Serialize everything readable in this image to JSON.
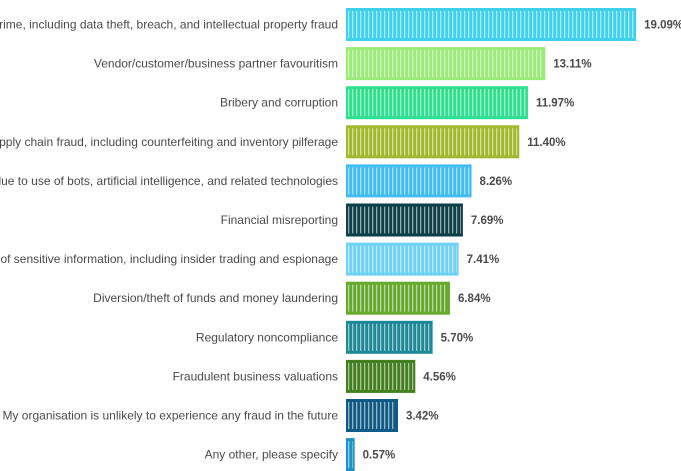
{
  "chart_data": {
    "type": "bar",
    "orientation": "horizontal",
    "title": "",
    "xlabel": "",
    "ylabel": "",
    "xlim": [
      0,
      20
    ],
    "grid": false,
    "legend": "none",
    "categories": [
      "Cybercrime, including data theft, breach, and intellectual property fraud",
      "Vendor/customer/business partner favouritism",
      "Bribery and corruption",
      "Supply chain fraud, including counterfeiting and inventory pilferage",
      "Fraud due to use of bots, artificial intelligence, and related technologies",
      "Financial misreporting",
      "Leakage of sensitive information, including insider trading and espionage",
      "Diversion/theft of funds and money laundering",
      "Regulatory noncompliance",
      "Fraudulent business valuations",
      "My organisation is unlikely to experience any fraud in the future",
      "Any other, please specify"
    ],
    "values": [
      19.09,
      13.11,
      11.97,
      11.4,
      8.26,
      7.69,
      7.41,
      6.84,
      5.7,
      4.56,
      3.42,
      0.57
    ],
    "value_labels": [
      "19.09%",
      "13.11%",
      "11.97%",
      "11.40%",
      "8.26%",
      "7.69%",
      "7.41%",
      "6.84%",
      "5.70%",
      "4.56%",
      "3.42%",
      "0.57%"
    ],
    "colors": [
      "#3fd0ea",
      "#9aeb7a",
      "#2de08f",
      "#a2b82c",
      "#41bdf0",
      "#0e3f49",
      "#6fd1f4",
      "#67a82e",
      "#1e8996",
      "#437f1e",
      "#125a86",
      "#1e93c9"
    ]
  }
}
